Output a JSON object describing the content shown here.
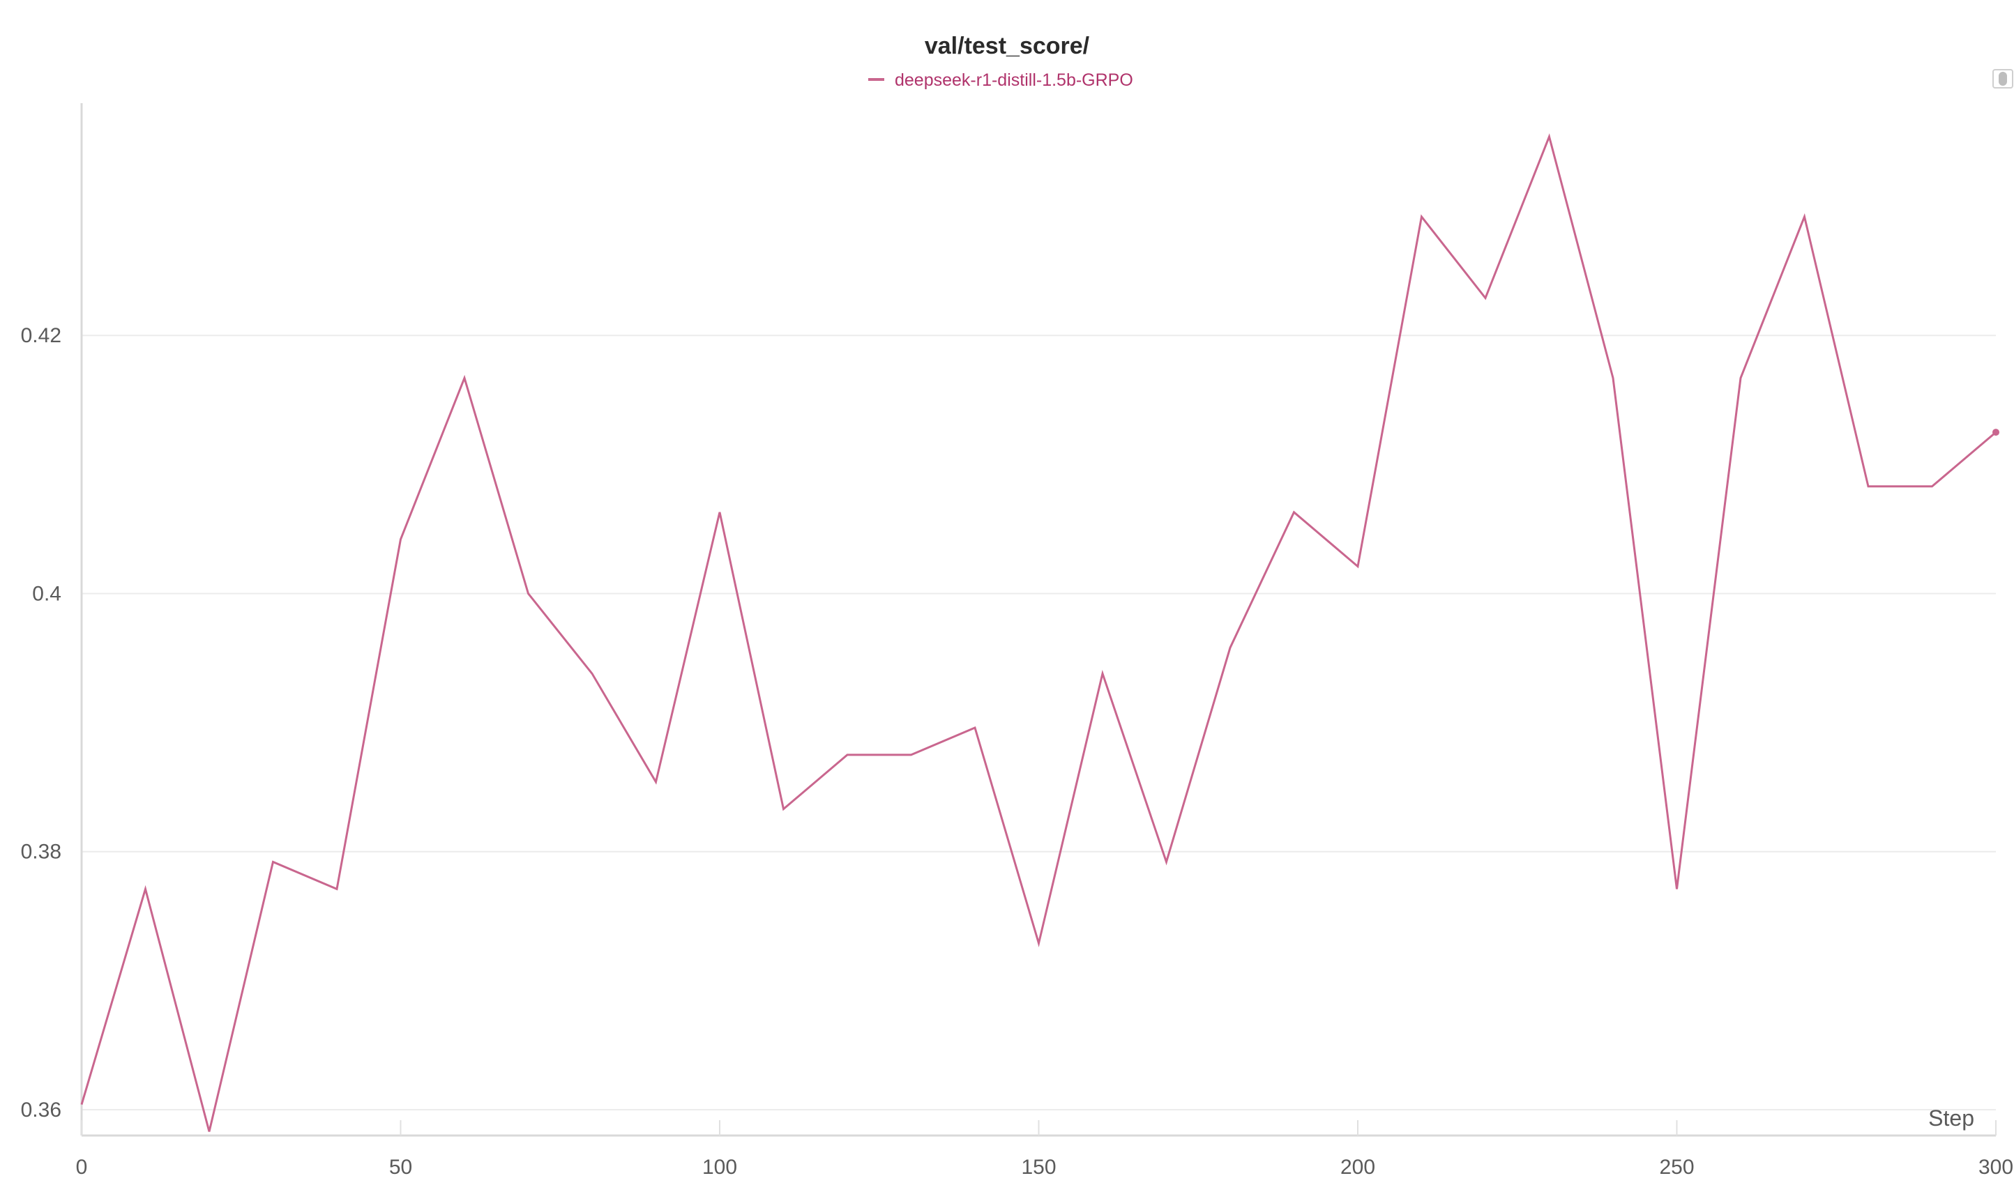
{
  "chart_data": {
    "type": "line",
    "title": "val/test_score/",
    "xlabel": "Step",
    "ylabel": "",
    "xlim": [
      0,
      300
    ],
    "ylim": [
      0.358,
      0.438
    ],
    "x_ticks": [
      0,
      50,
      100,
      150,
      200,
      250,
      300
    ],
    "y_ticks": [
      0.36,
      0.38,
      0.4,
      0.42
    ],
    "x_tick_labels": [
      "0",
      "50",
      "100",
      "150",
      "200",
      "250",
      "300"
    ],
    "y_tick_labels": [
      "0.36",
      "0.38",
      "0.4",
      "0.42"
    ],
    "grid": true,
    "legend_position": "top-center",
    "series": [
      {
        "name": "deepseek-r1-distill-1.5b-GRPO",
        "color": "#c9668e",
        "x": [
          0,
          10,
          20,
          30,
          40,
          50,
          60,
          70,
          80,
          90,
          100,
          110,
          120,
          130,
          140,
          150,
          160,
          170,
          180,
          190,
          200,
          210,
          220,
          230,
          240,
          250,
          260,
          270,
          280,
          290,
          300
        ],
        "y": [
          0.3604,
          0.3771,
          0.3583,
          0.3792,
          0.3771,
          0.4042,
          0.4167,
          0.4,
          0.3938,
          0.3854,
          0.4063,
          0.3833,
          0.3875,
          0.3875,
          0.3896,
          0.3729,
          0.3938,
          0.3792,
          0.3958,
          0.4063,
          0.4021,
          0.4292,
          0.4229,
          0.4354,
          0.4167,
          0.3771,
          0.4167,
          0.4292,
          0.4083,
          0.4083,
          0.4125
        ]
      }
    ]
  }
}
